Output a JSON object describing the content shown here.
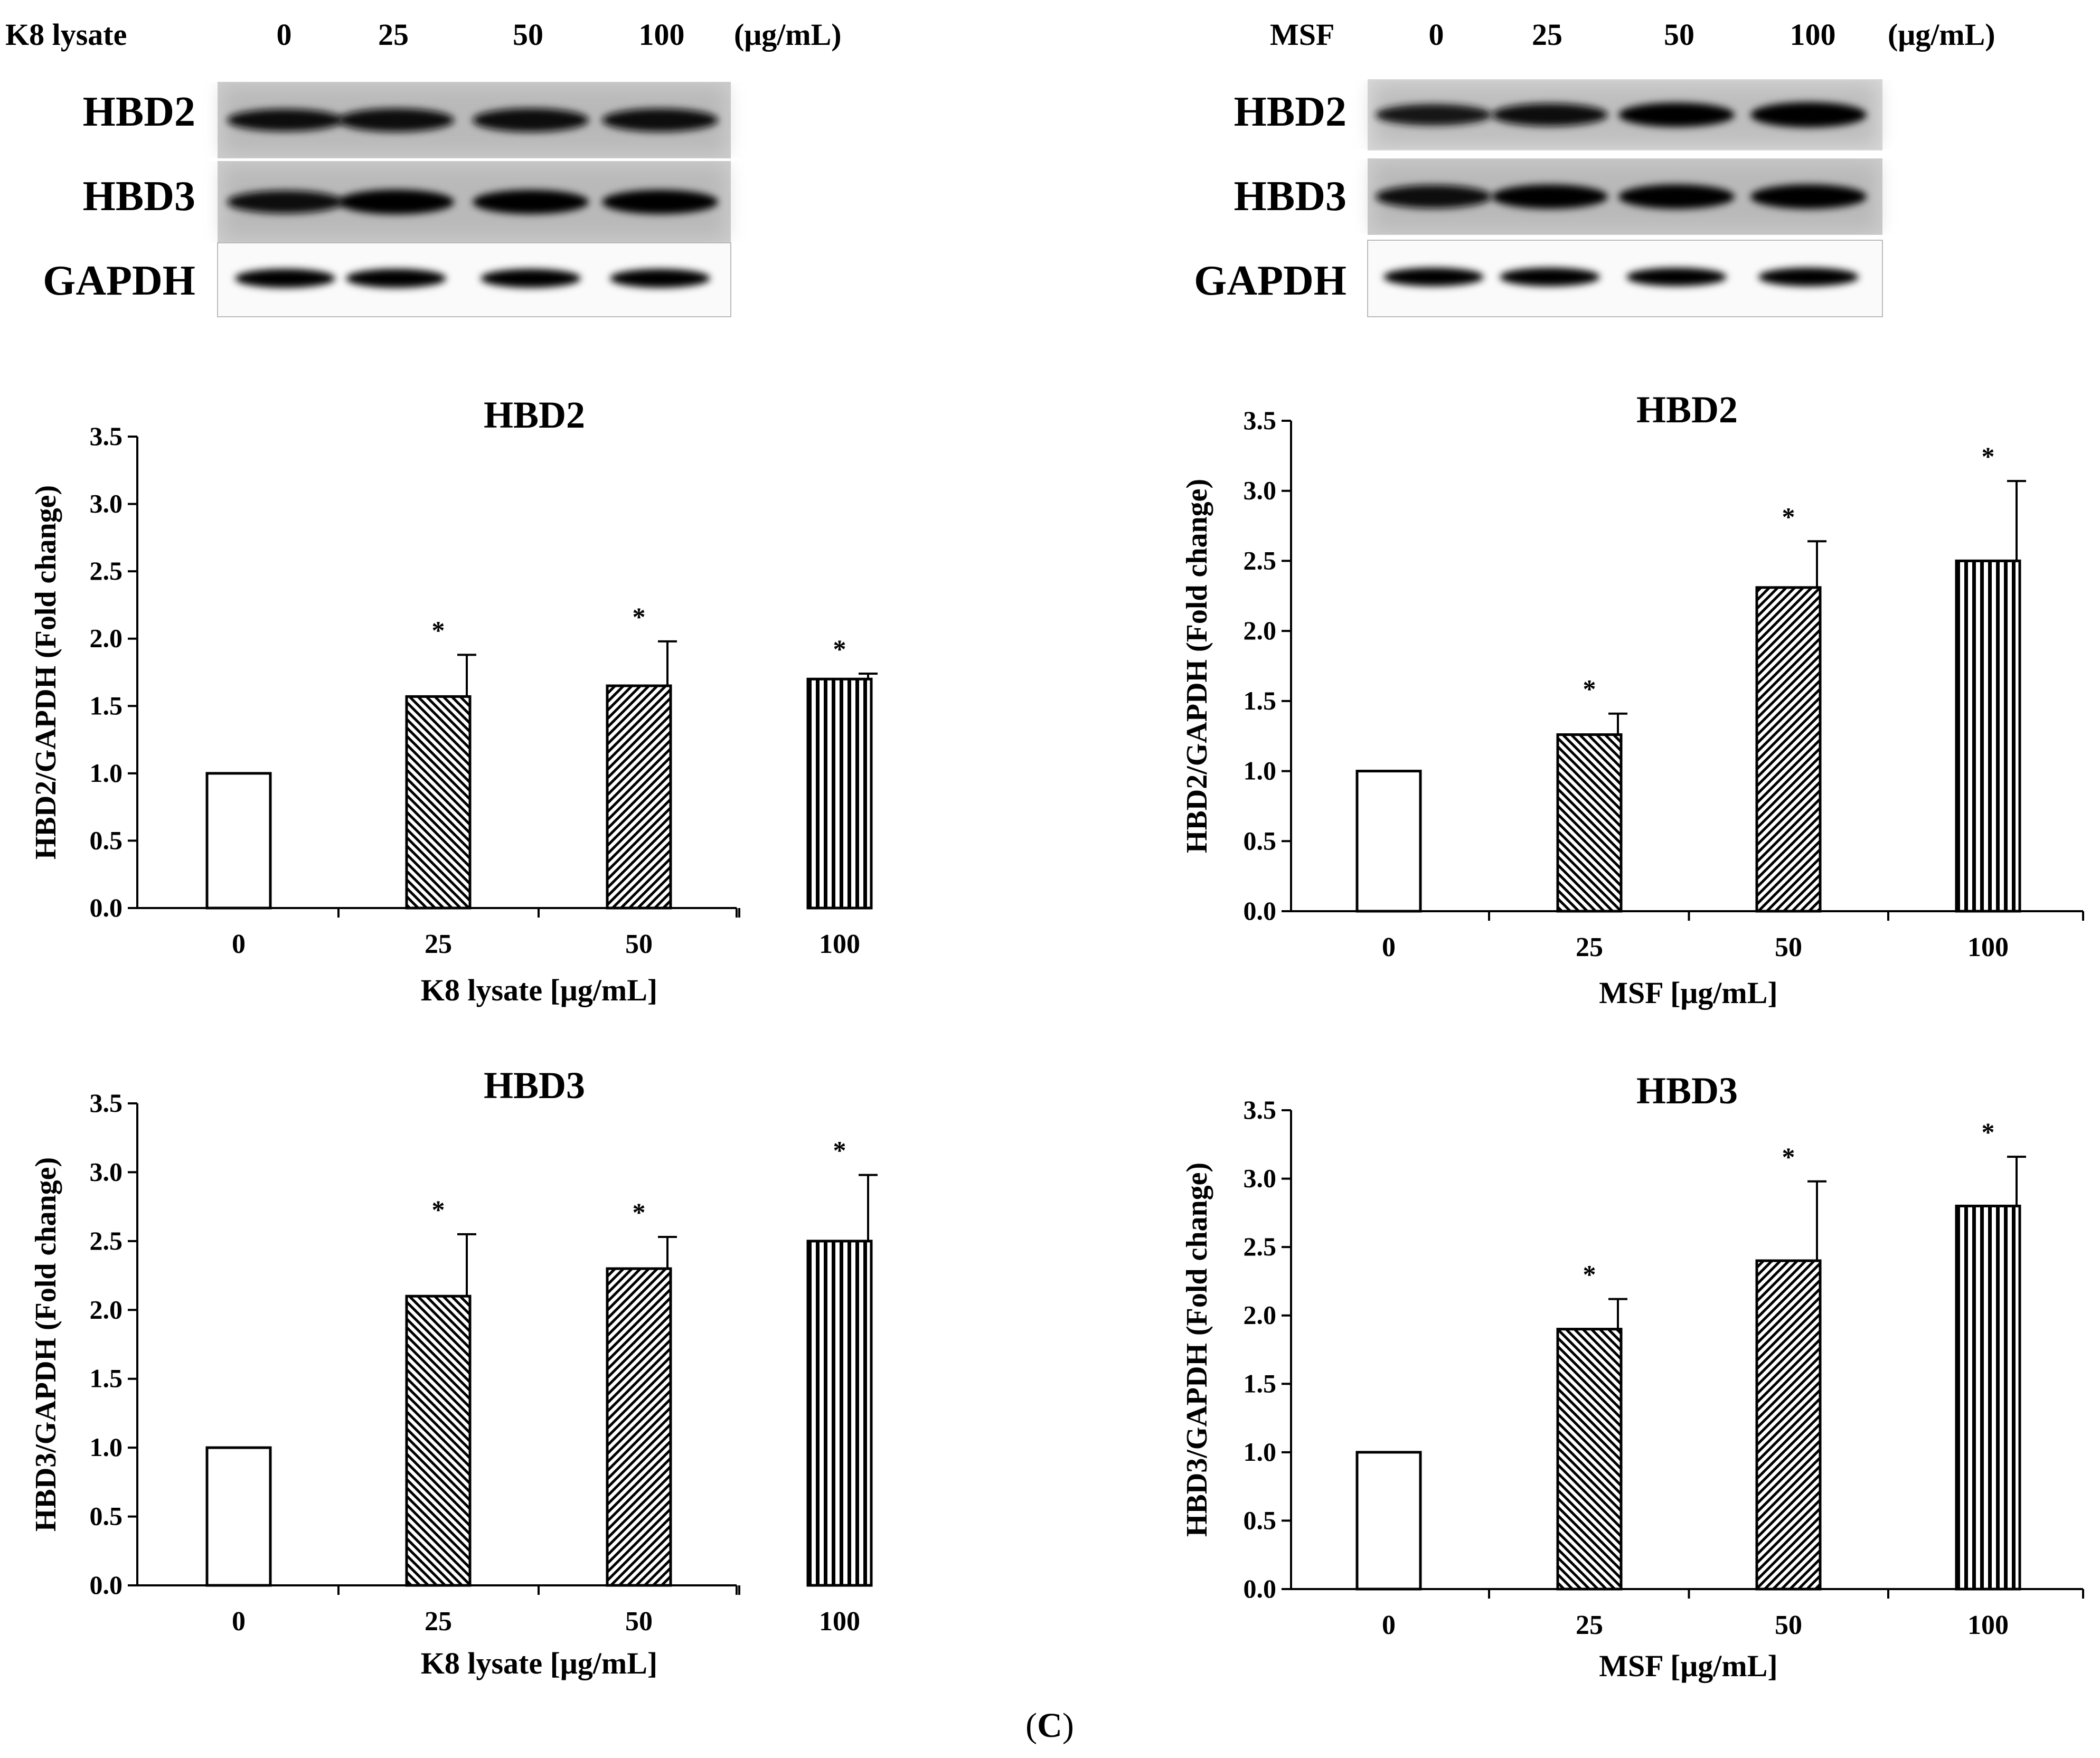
{
  "panel_label_open": "(",
  "panel_label": "C",
  "panel_label_close": ")",
  "westerns": [
    {
      "treatment": "K8 lysate",
      "doses": [
        "0",
        "25",
        "50",
        "100"
      ],
      "unit": "(μg/mL)",
      "rows": [
        "HBD2",
        "HBD3",
        "GAPDH"
      ],
      "band_intensity": [
        [
          0.72,
          0.82,
          0.84,
          0.8
        ],
        [
          0.78,
          0.95,
          0.9,
          0.9
        ],
        [
          1.0,
          1.0,
          0.98,
          0.98
        ]
      ]
    },
    {
      "treatment": "MSF",
      "doses": [
        "0",
        "25",
        "50",
        "100"
      ],
      "unit": "(μg/mL)",
      "rows": [
        "HBD2",
        "HBD3",
        "GAPDH"
      ],
      "band_intensity": [
        [
          0.62,
          0.75,
          0.9,
          1.0
        ],
        [
          0.8,
          0.9,
          0.92,
          0.92
        ],
        [
          0.95,
          0.95,
          0.92,
          0.95
        ]
      ]
    }
  ],
  "chart_data": [
    {
      "type": "bar",
      "title": "HBD2",
      "xlabel": "K8 lysate [μg/mL]",
      "ylabel": "HBD2/GAPDH (Fold change)",
      "categories": [
        "0",
        "25",
        "50",
        "100"
      ],
      "values": [
        1.0,
        1.57,
        1.65,
        1.7
      ],
      "errors": [
        0,
        0.31,
        0.33,
        0.04
      ],
      "significance": [
        "",
        "*",
        "*",
        "*"
      ],
      "patterns": [
        "none",
        "back-diagonal",
        "diagonal",
        "vertical"
      ],
      "ylim": [
        0,
        3.5
      ],
      "yticks": [
        "0.0",
        "0.5",
        "1.0",
        "1.5",
        "2.0",
        "2.5",
        "3.0",
        "3.5"
      ],
      "grid": false
    },
    {
      "type": "bar",
      "title": "HBD2",
      "xlabel": "MSF [μg/mL]",
      "ylabel": "HBD2/GAPDH (Fold change)",
      "categories": [
        "0",
        "25",
        "50",
        "100"
      ],
      "values": [
        1.0,
        1.26,
        2.31,
        2.5
      ],
      "errors": [
        0,
        0.15,
        0.33,
        0.57
      ],
      "significance": [
        "",
        "*",
        "*",
        "*"
      ],
      "patterns": [
        "none",
        "back-diagonal",
        "diagonal",
        "vertical"
      ],
      "ylim": [
        0,
        3.5
      ],
      "yticks": [
        "0.0",
        "0.5",
        "1.0",
        "1.5",
        "2.0",
        "2.5",
        "3.0",
        "3.5"
      ],
      "grid": false
    },
    {
      "type": "bar",
      "title": "HBD3",
      "xlabel": "K8 lysate [μg/mL]",
      "ylabel": "HBD3/GAPDH (Fold change)",
      "categories": [
        "0",
        "25",
        "50",
        "100"
      ],
      "values": [
        1.0,
        2.1,
        2.3,
        2.5
      ],
      "errors": [
        0,
        0.45,
        0.23,
        0.48
      ],
      "significance": [
        "",
        "*",
        "*",
        "*"
      ],
      "patterns": [
        "none",
        "back-diagonal",
        "diagonal",
        "vertical"
      ],
      "ylim": [
        0,
        3.5
      ],
      "yticks": [
        "0.0",
        "0.5",
        "1.0",
        "1.5",
        "2.0",
        "2.5",
        "3.0",
        "3.5"
      ],
      "grid": false
    },
    {
      "type": "bar",
      "title": "HBD3",
      "xlabel": "MSF [μg/mL]",
      "ylabel": "HBD3/GAPDH (Fold change)",
      "categories": [
        "0",
        "25",
        "50",
        "100"
      ],
      "values": [
        1.0,
        1.9,
        2.4,
        2.8
      ],
      "errors": [
        0,
        0.22,
        0.58,
        0.36
      ],
      "significance": [
        "",
        "*",
        "*",
        "*"
      ],
      "patterns": [
        "none",
        "back-diagonal",
        "diagonal",
        "vertical"
      ],
      "ylim": [
        0,
        3.5
      ],
      "yticks": [
        "0.0",
        "0.5",
        "1.0",
        "1.5",
        "2.0",
        "2.5",
        "3.0",
        "3.5"
      ],
      "grid": false
    }
  ]
}
